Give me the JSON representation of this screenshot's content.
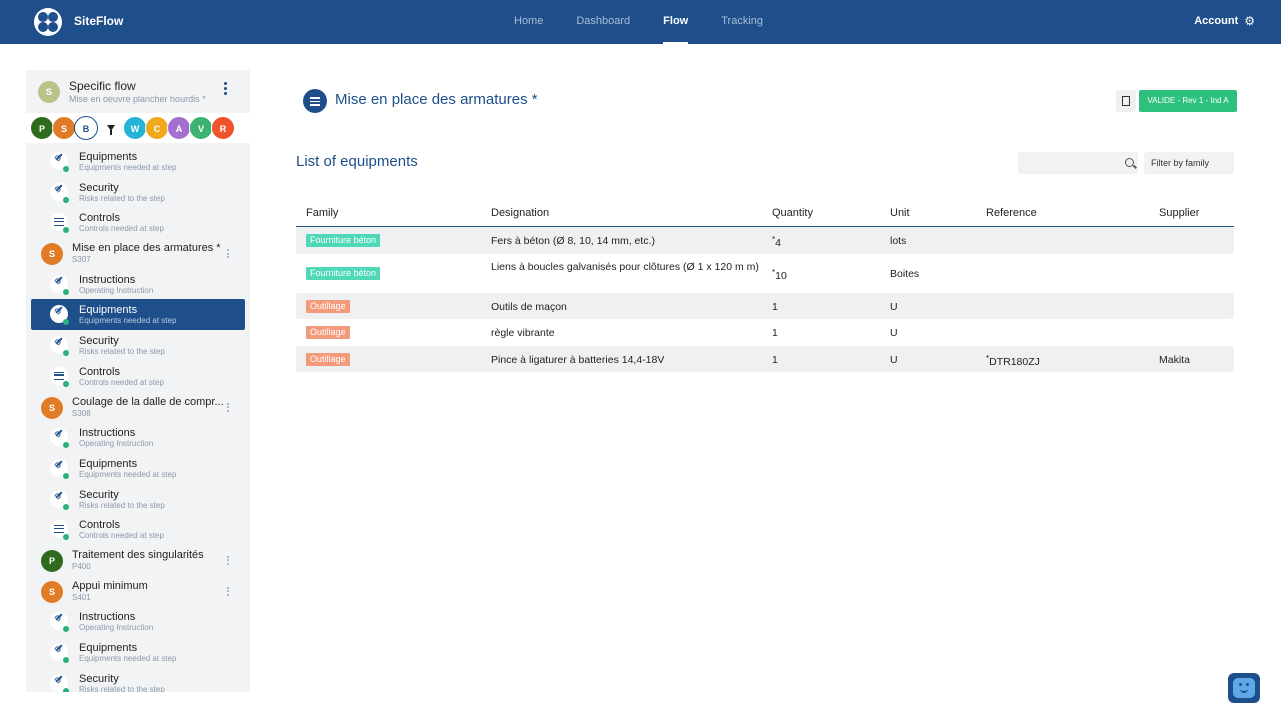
{
  "app": {
    "brand": "SiteFlow",
    "nav": [
      {
        "label": "Home",
        "active": false
      },
      {
        "label": "Dashboard",
        "active": false
      },
      {
        "label": "Flow",
        "active": true
      },
      {
        "label": "Tracking",
        "active": false
      }
    ],
    "account_label": "Account"
  },
  "sidebar": {
    "flow_avatar": "S",
    "flow_title": "Specific flow",
    "flow_subtitle": "Mise en oeuvre plancher hourdis *",
    "chips": [
      {
        "letter": "P",
        "color": "#2e6b1e"
      },
      {
        "letter": "S",
        "color": "#e07b28"
      },
      {
        "letter": "B",
        "color": "#ffffff"
      },
      {
        "letter": "W",
        "color": "#26b4d6"
      },
      {
        "letter": "C",
        "color": "#f0a81c"
      },
      {
        "letter": "A",
        "color": "#a36fd0"
      },
      {
        "letter": "V",
        "color": "#3cb371"
      },
      {
        "letter": "R",
        "color": "#f0542d"
      }
    ],
    "items": [
      {
        "kind": "sub",
        "icon": "wrench-icon",
        "title": "Equipments",
        "sub": "Equipments needed at step"
      },
      {
        "kind": "sub",
        "icon": "wrench-icon",
        "title": "Security",
        "sub": "Risks related to the step"
      },
      {
        "kind": "sub",
        "icon": "list-icon",
        "title": "Controls",
        "sub": "Controls needed at step"
      },
      {
        "kind": "step",
        "avatar": "S",
        "color": "#e07b28",
        "title": "Mise en place des armatures *",
        "code": "S307"
      },
      {
        "kind": "sub",
        "icon": "wrench-icon",
        "title": "Instructions",
        "sub": "Operating Instruction"
      },
      {
        "kind": "sub",
        "icon": "wrench-icon",
        "title": "Equipments",
        "sub": "Equipments needed at step",
        "selected": true
      },
      {
        "kind": "sub",
        "icon": "wrench-icon",
        "title": "Security",
        "sub": "Risks related to the step"
      },
      {
        "kind": "sub",
        "icon": "list-icon",
        "title": "Controls",
        "sub": "Controls needed at step"
      },
      {
        "kind": "step",
        "avatar": "S",
        "color": "#e07b28",
        "title": "Coulage de la dalle de compr...",
        "code": "S308"
      },
      {
        "kind": "sub",
        "icon": "wrench-icon",
        "title": "Instructions",
        "sub": "Operating Instruction"
      },
      {
        "kind": "sub",
        "icon": "wrench-icon",
        "title": "Equipments",
        "sub": "Equipments needed at step"
      },
      {
        "kind": "sub",
        "icon": "wrench-icon",
        "title": "Security",
        "sub": "Risks related to the step"
      },
      {
        "kind": "sub",
        "icon": "list-icon",
        "title": "Controls",
        "sub": "Controls needed at step"
      },
      {
        "kind": "step",
        "avatar": "P",
        "color": "#2e6b1e",
        "title": "Traitement des singularités",
        "code": "P400"
      },
      {
        "kind": "step",
        "avatar": "S",
        "color": "#e07b28",
        "title": "Appui minimum",
        "code": "S401"
      },
      {
        "kind": "sub",
        "icon": "wrench-icon",
        "title": "Instructions",
        "sub": "Operating Instruction"
      },
      {
        "kind": "sub",
        "icon": "wrench-icon",
        "title": "Equipments",
        "sub": "Equipments needed at step"
      },
      {
        "kind": "sub",
        "icon": "wrench-icon",
        "title": "Security",
        "sub": "Risks related to the step"
      }
    ]
  },
  "main": {
    "page_title": "Mise en place des armatures *",
    "status_badge": "VALIDE - Rev 1 - Ind A",
    "section_title": "List of equipments",
    "search_placeholder": "",
    "search_value": "",
    "filter_label": "Filter by family",
    "columns": [
      "Family",
      "Designation",
      "Quantity",
      "Unit",
      "Reference",
      "Supplier"
    ],
    "rows": [
      {
        "family": "Fourniture béton",
        "family_color": "#4fd8b7",
        "designation": "Fers à béton (Ø 8, 10, 14 mm, etc.)",
        "qty_mark": "*",
        "quantity": "4",
        "unit": "lots",
        "ref_mark": "",
        "reference": "",
        "supplier": ""
      },
      {
        "family": "Fourniture béton",
        "family_color": "#4fd8b7",
        "designation": "Liens à boucles galvanisés pour clôtures (Ø 1 x 120 m m)",
        "qty_mark": "*",
        "quantity": "10",
        "unit": "Boites",
        "ref_mark": "",
        "reference": "",
        "supplier": ""
      },
      {
        "family": "Outillage",
        "family_color": "#f39a7a",
        "designation": "Outils de maçon",
        "qty_mark": "",
        "quantity": "1",
        "unit": "U",
        "ref_mark": "",
        "reference": "",
        "supplier": ""
      },
      {
        "family": "Outillage",
        "family_color": "#f39a7a",
        "designation": "règle vibrante",
        "qty_mark": "",
        "quantity": "1",
        "unit": "U",
        "ref_mark": "",
        "reference": "",
        "supplier": ""
      },
      {
        "family": "Outillage",
        "family_color": "#f39a7a",
        "designation": "Pince à ligaturer à batteries 14,4-18V",
        "qty_mark": "",
        "quantity": "1",
        "unit": "U",
        "ref_mark": "*",
        "reference": "DTR180ZJ",
        "supplier": "Makita"
      }
    ]
  },
  "colors": {
    "primary": "#1e4f8a",
    "valid": "#2ec17e",
    "status_dot": "#2ab07a"
  }
}
